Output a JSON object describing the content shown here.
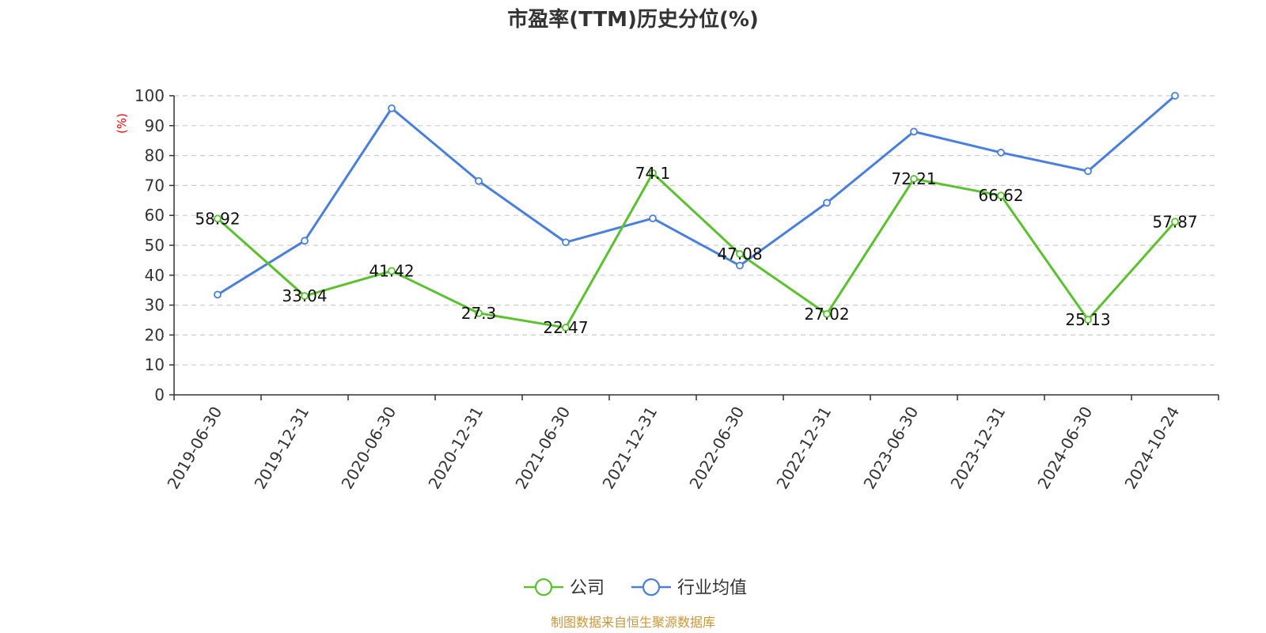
{
  "chart_data": {
    "type": "line",
    "title": "市盈率(TTM)历史分位(%)",
    "ylabel": "(%)",
    "xlabel": "",
    "ylim": [
      0,
      100
    ],
    "yticks": [
      0,
      10,
      20,
      30,
      40,
      50,
      60,
      70,
      80,
      90,
      100
    ],
    "grid": true,
    "legend": "bottom-center",
    "categories": [
      "2019-06-30",
      "2019-12-31",
      "2020-06-30",
      "2020-12-31",
      "2021-06-30",
      "2021-12-31",
      "2022-06-30",
      "2022-12-31",
      "2023-06-30",
      "2023-12-31",
      "2024-06-30",
      "2024-10-24"
    ],
    "series": [
      {
        "name": "公司",
        "color": "#5ac12f",
        "values": [
          58.92,
          33.04,
          41.42,
          27.3,
          22.47,
          74.1,
          47.08,
          27.02,
          72.21,
          66.62,
          25.13,
          57.87
        ],
        "labels": [
          "58.92",
          "33.04",
          "41.42",
          "27.3",
          "22.47",
          "74.1",
          "47.08",
          "27.02",
          "72.21",
          "66.62",
          "25.13",
          "57.87"
        ]
      },
      {
        "name": "行业均值",
        "color": "#4a7fdc",
        "values": [
          33.5,
          51.5,
          95.8,
          71.5,
          51.0,
          59.0,
          43.2,
          64.2,
          88.0,
          81.0,
          74.8,
          100
        ]
      }
    ],
    "source": "制图数据来自恒生聚源数据库"
  }
}
